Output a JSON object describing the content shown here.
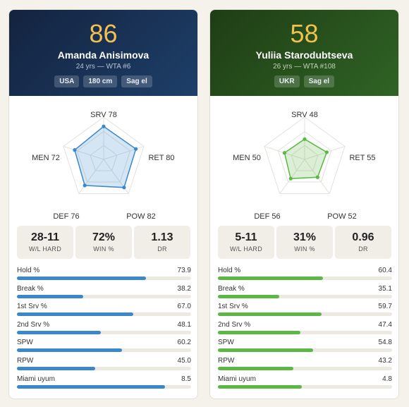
{
  "players": [
    {
      "score": "86",
      "name": "Amanda Anisimova",
      "meta": "24 yrs — WTA #6",
      "tags": [
        "USA",
        "180 cm",
        "Sag el"
      ],
      "accent": "#3a87cc",
      "radar": [
        {
          "label": "SRV",
          "value": 78
        },
        {
          "label": "RET",
          "value": 80
        },
        {
          "label": "POW",
          "value": 82
        },
        {
          "label": "DEF",
          "value": 76
        },
        {
          "label": "MEN",
          "value": 72
        }
      ],
      "stats": [
        {
          "value": "28-11",
          "label": "W/L HARD"
        },
        {
          "value": "72%",
          "label": "WIN %"
        },
        {
          "value": "1.13",
          "label": "DR"
        }
      ],
      "bars": [
        {
          "label": "Hold %",
          "value": "73.9",
          "fraction": 0.739
        },
        {
          "label": "Break %",
          "value": "38.2",
          "fraction": 0.382
        },
        {
          "label": "1st Srv %",
          "value": "67.0",
          "fraction": 0.67
        },
        {
          "label": "2nd Srv %",
          "value": "48.1",
          "fraction": 0.481
        },
        {
          "label": "SPW",
          "value": "60.2",
          "fraction": 0.602
        },
        {
          "label": "RPW",
          "value": "45.0",
          "fraction": 0.45
        },
        {
          "label": "Miami uyum",
          "value": "8.5",
          "fraction": 0.85
        }
      ]
    },
    {
      "score": "58",
      "name": "Yuliia Starodubtseva",
      "meta": "26 yrs — WTA #108",
      "tags": [
        "UKR",
        "Sag el"
      ],
      "accent": "#5cb845",
      "radar": [
        {
          "label": "SRV",
          "value": 48
        },
        {
          "label": "RET",
          "value": 55
        },
        {
          "label": "POW",
          "value": 52
        },
        {
          "label": "DEF",
          "value": 56
        },
        {
          "label": "MEN",
          "value": 50
        }
      ],
      "stats": [
        {
          "value": "5-11",
          "label": "W/L HARD"
        },
        {
          "value": "31%",
          "label": "WIN %"
        },
        {
          "value": "0.96",
          "label": "DR"
        }
      ],
      "bars": [
        {
          "label": "Hold %",
          "value": "60.4",
          "fraction": 0.604
        },
        {
          "label": "Break %",
          "value": "35.1",
          "fraction": 0.351
        },
        {
          "label": "1st Srv %",
          "value": "59.7",
          "fraction": 0.597
        },
        {
          "label": "2nd Srv %",
          "value": "47.4",
          "fraction": 0.474
        },
        {
          "label": "SPW",
          "value": "54.8",
          "fraction": 0.548
        },
        {
          "label": "RPW",
          "value": "43.2",
          "fraction": 0.432
        },
        {
          "label": "Miami uyum",
          "value": "4.8",
          "fraction": 0.48
        }
      ]
    }
  ]
}
